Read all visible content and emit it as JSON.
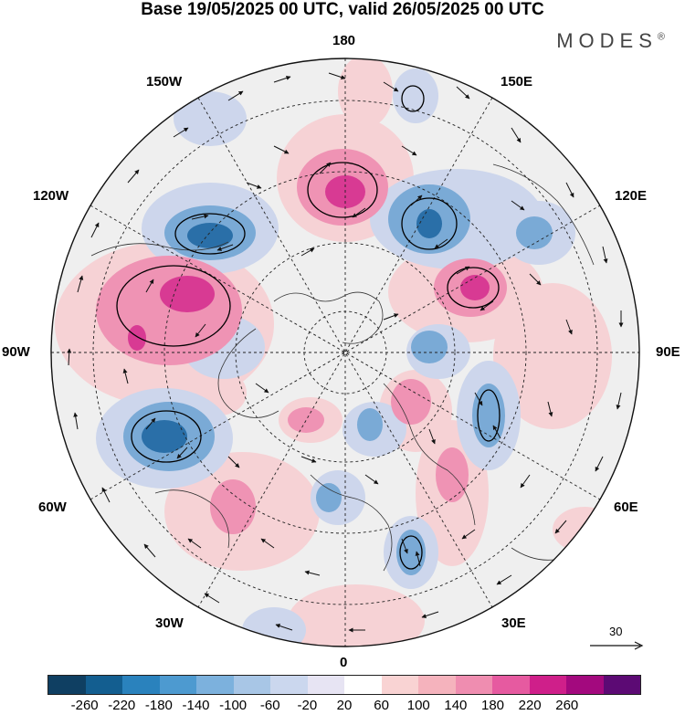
{
  "title": "Base 19/05/2025 00 UTC, valid 26/05/2025 00 UTC",
  "brand": "MODES",
  "brand_mark": "®",
  "longitudes": {
    "top": "180",
    "bottom": "0",
    "left": "90W",
    "right": "90E",
    "upper_left": "150W",
    "upper_right": "150E",
    "mid_left": "120W",
    "mid_right": "120E",
    "lower_left": "60W",
    "lower_right": "60E",
    "bottom_left": "30W",
    "bottom_right": "30E"
  },
  "reference_vector": "30",
  "colorbar": {
    "colors": [
      "#0f3f62",
      "#135e90",
      "#2a82bd",
      "#4d9ad0",
      "#7cb1dd",
      "#a8c6e6",
      "#cbd7ee",
      "#e7e4f3",
      "#ffffff",
      "#f9d3d3",
      "#f5b3bd",
      "#ef8db0",
      "#e65aa0",
      "#cf1f8a",
      "#a3097e",
      "#5c0a74"
    ],
    "tick_labels": [
      "-260",
      "-220",
      "-180",
      "-140",
      "-100",
      "-60",
      "-20",
      "20",
      "60",
      "100",
      "140",
      "180",
      "220",
      "260"
    ]
  },
  "map_colors": {
    "background": "#efefef",
    "strong_negative": "#2a6fa8",
    "negative": "#7aaad6",
    "weak_negative": "#cdd6ec",
    "weak_positive": "#f6d2d5",
    "positive": "#ef93b4",
    "strong_positive": "#d83a93"
  }
}
